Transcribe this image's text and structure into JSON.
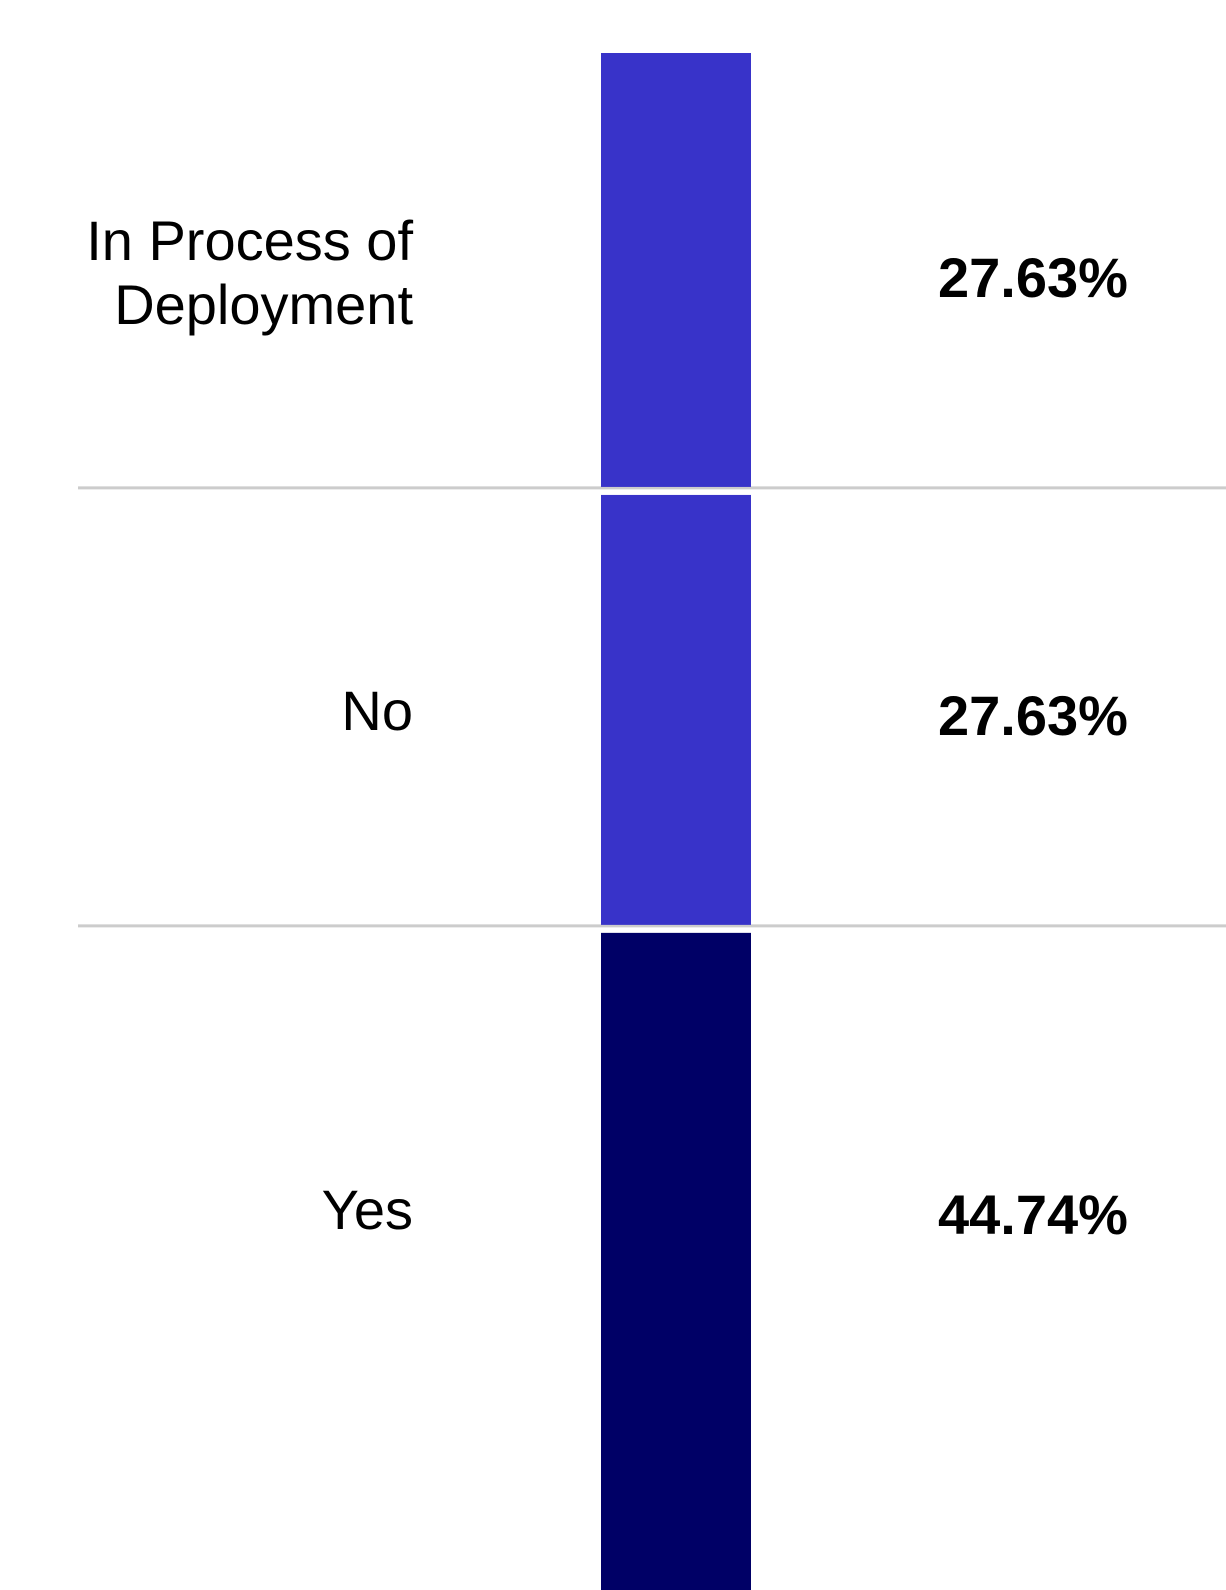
{
  "chart_data": {
    "type": "bar",
    "orientation": "stacked-single",
    "categories": [
      "In Process of Deployment",
      "No",
      "Yes"
    ],
    "values": [
      27.63,
      27.63,
      44.74
    ],
    "value_labels": [
      "27.63%",
      "27.63%",
      "44.74%"
    ],
    "colors": [
      "#3833c9",
      "#3833c9",
      "#000066"
    ],
    "title": "",
    "xlabel": "",
    "ylabel": "",
    "grid": false,
    "legend": "none",
    "separator_color": "#cccccc"
  }
}
